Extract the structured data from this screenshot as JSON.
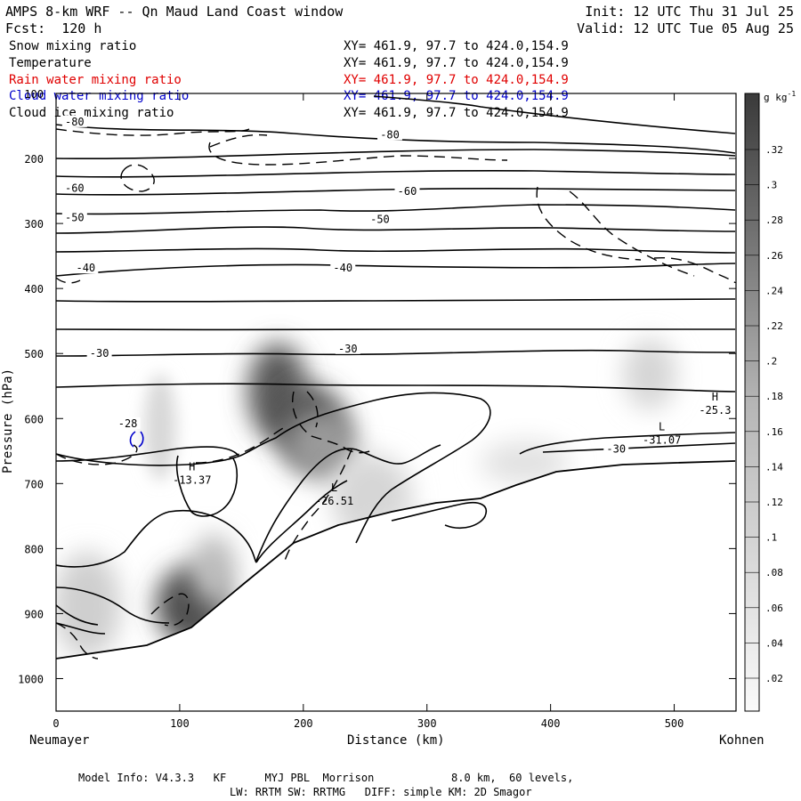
{
  "header": {
    "title": "AMPS 8-km WRF -- Qn Maud Land Coast window",
    "init": "Init: 12 UTC Thu 31 Jul 25",
    "fcst": "Fcst:  120 h",
    "valid": "Valid: 12 UTC Tue 05 Aug 25"
  },
  "fields": [
    {
      "name": "Snow mixing ratio",
      "xy": "XY= 461.9, 97.7 to 424.0,154.9",
      "color": "#000000"
    },
    {
      "name": "Temperature",
      "xy": "XY= 461.9, 97.7 to 424.0,154.9",
      "color": "#000000"
    },
    {
      "name": "Rain water mixing ratio",
      "xy": "XY= 461.9, 97.7 to 424.0,154.9",
      "color": "#e00000"
    },
    {
      "name": "Cloud water mixing ratio",
      "xy": "XY= 461.9, 97.7 to 424.0,154.9",
      "color": "#0000cc"
    },
    {
      "name": "Cloud ice mixing ratio",
      "xy": "XY= 461.9, 97.7 to 424.0,154.9",
      "color": "#000000"
    }
  ],
  "footer": {
    "line1": "Model Info: V4.3.3   KF      MYJ PBL  Morrison            8.0 km,  60 levels,",
    "line2": "LW: RRTM SW: RRTMG   DIFF: simple KM: 2D Smagor"
  },
  "chart_data": {
    "type": "heatmap",
    "xlabel": "Distance (km)",
    "ylabel": "Pressure (hPa)",
    "xlim": [
      0,
      550
    ],
    "ylim": [
      1050,
      100
    ],
    "x_ticks": [
      0,
      100,
      200,
      300,
      400,
      500
    ],
    "y_ticks": [
      100,
      200,
      300,
      400,
      500,
      600,
      700,
      800,
      900,
      1000
    ],
    "endpoints": {
      "left": "Neumayer",
      "right": "Kohnen"
    },
    "colorbar": {
      "unit": "g kg",
      "unit_exp": "-1",
      "levels": [
        ".32",
        ".3",
        ".28",
        ".26",
        ".24",
        ".22",
        ".2",
        ".18",
        ".16",
        ".14",
        ".12",
        ".1",
        ".08",
        ".06",
        ".04",
        ".02"
      ]
    },
    "contour_labels": [
      {
        "text": "-80",
        "x": 15,
        "p": 145
      },
      {
        "text": "-80",
        "x": 270,
        "p": 165
      },
      {
        "text": "-60",
        "x": 15,
        "p": 247
      },
      {
        "text": "-60",
        "x": 284,
        "p": 252
      },
      {
        "text": "-50",
        "x": 15,
        "p": 292
      },
      {
        "text": "-50",
        "x": 262,
        "p": 295
      },
      {
        "text": "-40",
        "x": 24,
        "p": 370
      },
      {
        "text": "-40",
        "x": 232,
        "p": 370
      },
      {
        "text": "-30",
        "x": 35,
        "p": 501
      },
      {
        "text": "-30",
        "x": 236,
        "p": 494
      },
      {
        "text": "-30",
        "x": 453,
        "p": 648
      },
      {
        "text": "-28",
        "x": 58,
        "p": 609
      }
    ],
    "extrema": [
      {
        "mark": "H",
        "value": "-13.37",
        "x": 110,
        "p": 680
      },
      {
        "mark": "L",
        "value": "-26.51",
        "x": 225,
        "p": 712
      },
      {
        "mark": "L",
        "value": "-31.07",
        "x": 490,
        "p": 618
      },
      {
        "mark": "H",
        "value": "-25.3",
        "x": 533,
        "p": 572
      }
    ]
  }
}
